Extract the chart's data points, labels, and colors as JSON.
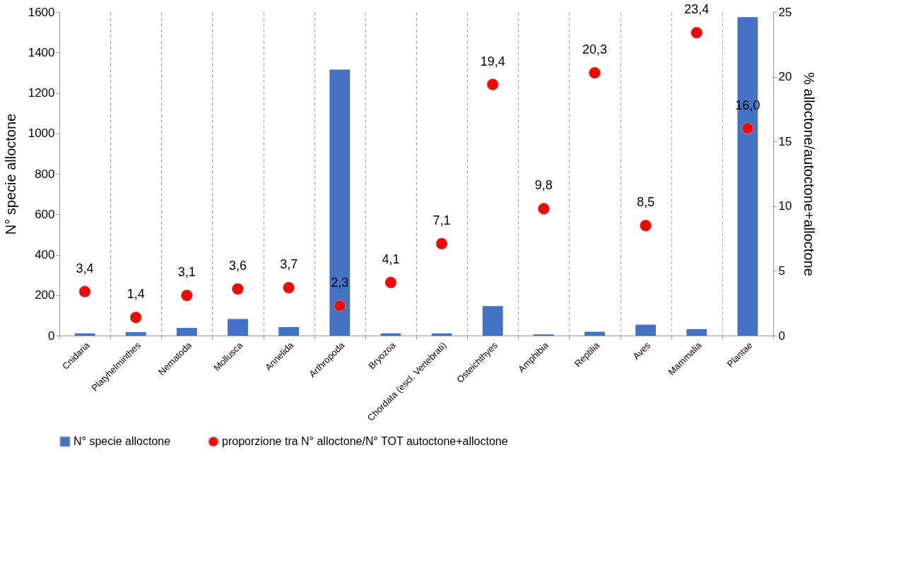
{
  "chart_data": {
    "type": "bar",
    "ylabel": "N° specie alloctone",
    "y2label": "% alloctone/autoctone+alloctone",
    "categories": [
      "Cnidaria",
      "Platyhelminthes",
      "Nematoda",
      "Mollusca",
      "Annelida",
      "Arthropoda",
      "Bryozoa",
      "Chordata (escl. Vertebrati)",
      "Osteichthyes",
      "Amphibia",
      "Reptilia",
      "Aves",
      "Mammalia",
      "Plantae"
    ],
    "series": [
      {
        "name": "N° specie alloctone",
        "color": "#4472c4",
        "values": [
          11,
          17,
          38,
          82,
          42,
          1315,
          11,
          11,
          146,
          6,
          19,
          54,
          32,
          1575
        ]
      },
      {
        "name": "proporzione tra N° alloctone/N° TOT autoctone+alloctone",
        "type": "scatter",
        "axis": "y2",
        "color": "#ff0000",
        "values": [
          3.4,
          1.4,
          3.1,
          3.6,
          3.7,
          2.3,
          4.1,
          7.1,
          19.4,
          9.8,
          20.3,
          8.5,
          23.4,
          16.0
        ],
        "value_labels": [
          "3,4",
          "1,4",
          "3,1",
          "3,6",
          "3,7",
          "2,3",
          "4,1",
          "7,1",
          "19,4",
          "9,8",
          "20,3",
          "8,5",
          "23,4",
          "16,0"
        ]
      }
    ],
    "ylim": [
      0,
      1600
    ],
    "yticks": [
      0,
      200,
      400,
      600,
      800,
      1000,
      1200,
      1400,
      1600
    ],
    "y2lim": [
      0,
      25
    ],
    "y2ticks": [
      0,
      5,
      10,
      15,
      20,
      25
    ],
    "grid": "x",
    "legend": "bottom",
    "marker": "circle"
  }
}
